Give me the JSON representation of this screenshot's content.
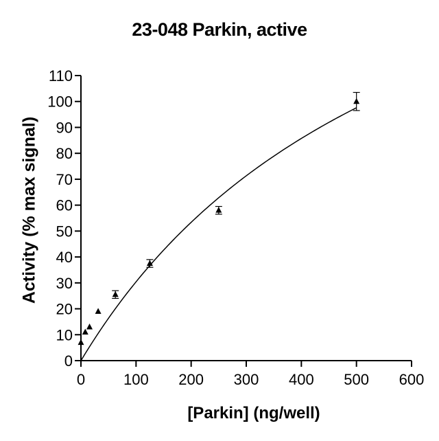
{
  "chart_data": {
    "type": "scatter",
    "title": "23-048 Parkin, active",
    "xlabel": "[Parkin] (ng/well)",
    "ylabel": "Activity (% max signal)",
    "xlim": [
      0,
      600
    ],
    "ylim": [
      0,
      110
    ],
    "xticks": [
      0,
      100,
      200,
      300,
      400,
      500,
      600
    ],
    "yticks": [
      0,
      10,
      20,
      30,
      40,
      50,
      60,
      70,
      80,
      90,
      100,
      110
    ],
    "grid": false,
    "marker": "triangle",
    "series": [
      {
        "x": [
          0,
          7.8,
          15.6,
          31.25,
          62.5,
          125,
          250,
          500
        ],
        "y": [
          7,
          11,
          13,
          19,
          25.5,
          37.5,
          58,
          100
        ],
        "error": [
          0,
          0,
          0,
          0,
          1.5,
          1.5,
          1.5,
          3.5
        ]
      }
    ],
    "fit_curve": {
      "type": "hyperbola",
      "bmax": 218,
      "kd": 617
    }
  }
}
